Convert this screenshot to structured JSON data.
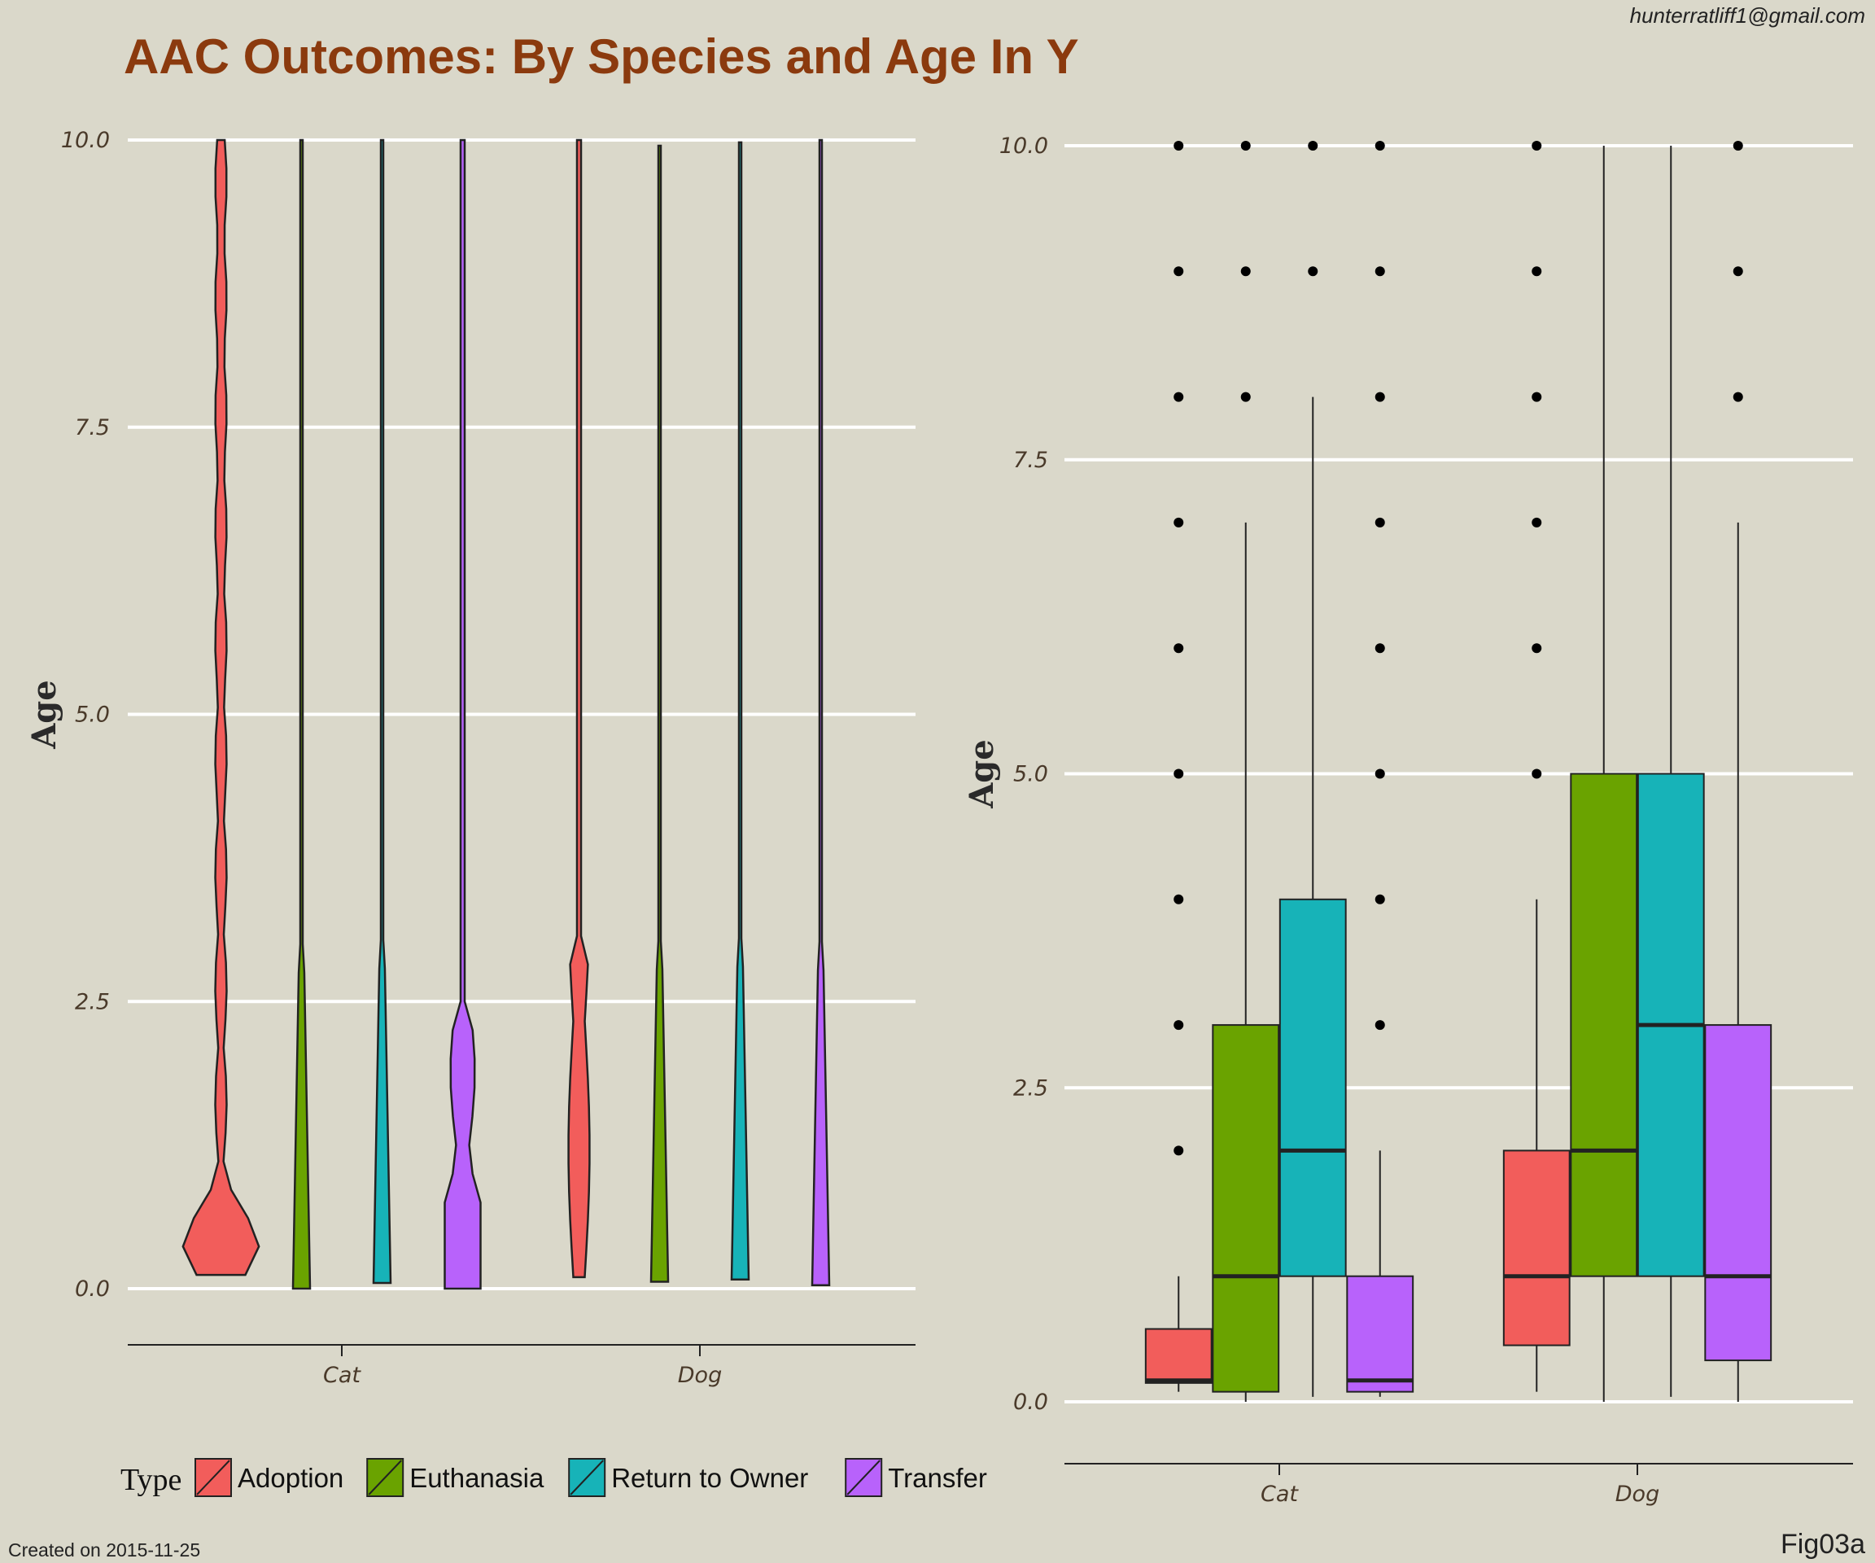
{
  "header": {
    "title": "AAC Outcomes: By Species and Age In Y",
    "email": "hunterratliff1@gmail.com"
  },
  "footer": {
    "created": "Created on 2015-11-25",
    "fig_id": "Fig03a"
  },
  "legend": {
    "title": "Type",
    "position": "bottom-left",
    "items": [
      {
        "label": "Adoption",
        "color": "#f25d5b"
      },
      {
        "label": "Euthanasia",
        "color": "#6aa300"
      },
      {
        "label": "Return to Owner",
        "color": "#17b3b8"
      },
      {
        "label": "Transfer",
        "color": "#b862fb"
      }
    ]
  },
  "chart_data": [
    {
      "type": "violin",
      "ylabel": "Age",
      "xlabel": "",
      "ylim": [
        -0.5,
        10.0
      ],
      "yticks": [
        0.0,
        2.5,
        5.0,
        7.5,
        10.0
      ],
      "ytick_labels": [
        "0.0",
        "2.5",
        "5.0",
        "7.5",
        "10.0"
      ],
      "categories": [
        "Cat",
        "Dog"
      ],
      "grid": "horizontal",
      "series": [
        {
          "category": "Cat",
          "type": "Adoption",
          "min": 0.12,
          "max": 10.0
        },
        {
          "category": "Cat",
          "type": "Euthanasia",
          "min": 0.0,
          "max": 10.0
        },
        {
          "category": "Cat",
          "type": "Return to Owner",
          "min": 0.05,
          "max": 10.0
        },
        {
          "category": "Cat",
          "type": "Transfer",
          "min": 0.0,
          "max": 10.0
        },
        {
          "category": "Dog",
          "type": "Adoption",
          "min": 0.1,
          "max": 10.0
        },
        {
          "category": "Dog",
          "type": "Euthanasia",
          "min": 0.06,
          "max": 9.95
        },
        {
          "category": "Dog",
          "type": "Return to Owner",
          "min": 0.08,
          "max": 9.98
        },
        {
          "category": "Dog",
          "type": "Transfer",
          "min": 0.03,
          "max": 10.0
        }
      ]
    },
    {
      "type": "box",
      "ylabel": "Age",
      "xlabel": "",
      "ylim": [
        -0.5,
        10.0
      ],
      "yticks": [
        0.0,
        2.5,
        5.0,
        7.5,
        10.0
      ],
      "ytick_labels": [
        "0.0",
        "2.5",
        "5.0",
        "7.5",
        "10.0"
      ],
      "categories": [
        "Cat",
        "Dog"
      ],
      "grid": "horizontal",
      "series": [
        {
          "category": "Cat",
          "type": "Adoption",
          "whisker_low": 0.08,
          "q1": 0.15,
          "median": 0.17,
          "q3": 0.58,
          "whisker_high": 1.0,
          "outliers": [
            2,
            3,
            4,
            5,
            6,
            7,
            8,
            9,
            10
          ]
        },
        {
          "category": "Cat",
          "type": "Euthanasia",
          "whisker_low": 0.0,
          "q1": 0.08,
          "median": 1.0,
          "q3": 3.0,
          "whisker_high": 7.0,
          "outliers": [
            8,
            9,
            10
          ]
        },
        {
          "category": "Cat",
          "type": "Return to Owner",
          "whisker_low": 0.04,
          "q1": 1.0,
          "median": 2.0,
          "q3": 4.0,
          "whisker_high": 8.0,
          "outliers": [
            9,
            10
          ]
        },
        {
          "category": "Cat",
          "type": "Transfer",
          "whisker_low": 0.04,
          "q1": 0.08,
          "median": 0.17,
          "q3": 1.0,
          "whisker_high": 2.0,
          "outliers": [
            3,
            4,
            5,
            6,
            7,
            8,
            9,
            10
          ]
        },
        {
          "category": "Dog",
          "type": "Adoption",
          "whisker_low": 0.08,
          "q1": 0.45,
          "median": 1.0,
          "q3": 2.0,
          "whisker_high": 4.0,
          "outliers": [
            5,
            6,
            7,
            8,
            9,
            10
          ]
        },
        {
          "category": "Dog",
          "type": "Euthanasia",
          "whisker_low": 0.0,
          "q1": 1.0,
          "median": 2.0,
          "q3": 5.0,
          "whisker_high": 10.0,
          "outliers": []
        },
        {
          "category": "Dog",
          "type": "Return to Owner",
          "whisker_low": 0.04,
          "q1": 1.0,
          "median": 3.0,
          "q3": 5.0,
          "whisker_high": 10.0,
          "outliers": []
        },
        {
          "category": "Dog",
          "type": "Transfer",
          "whisker_low": 0.0,
          "q1": 0.33,
          "median": 1.0,
          "q3": 3.0,
          "whisker_high": 7.0,
          "outliers": [
            8,
            9,
            10
          ]
        }
      ]
    }
  ]
}
